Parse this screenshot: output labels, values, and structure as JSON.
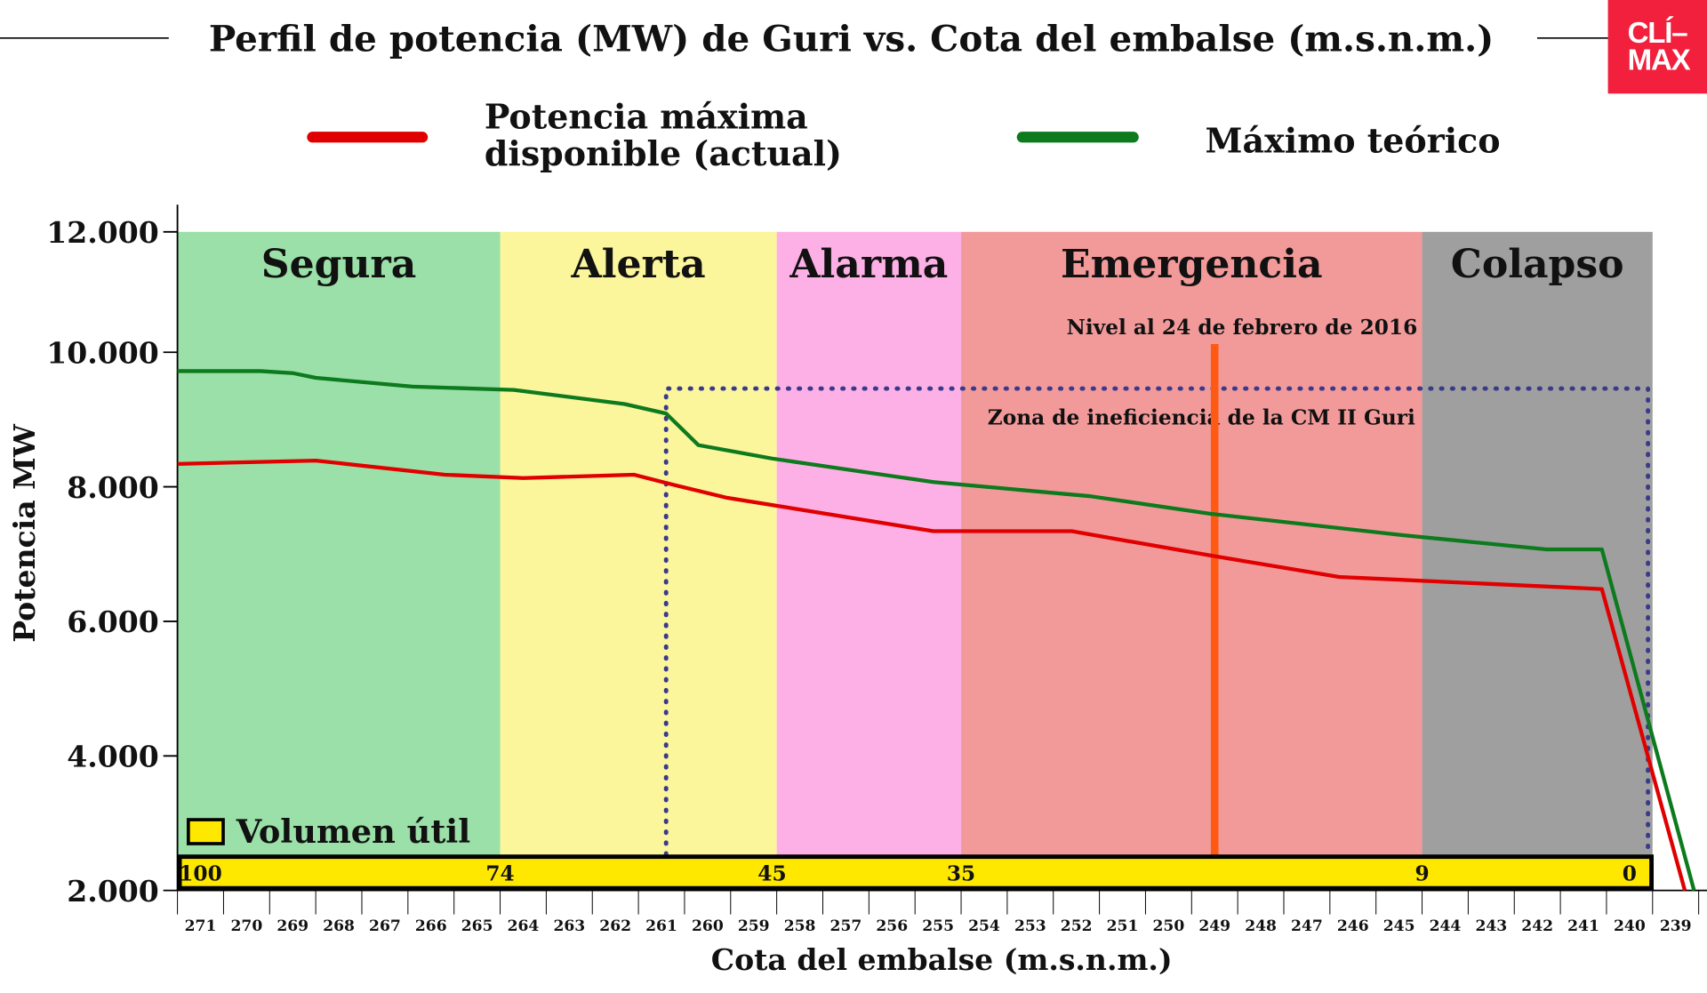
{
  "logo": {
    "line1": "CLÍ–",
    "line2": "MAX"
  },
  "chart_data": {
    "type": "line",
    "title": "Perfil de potencia (MW) de Guri vs. Cota del embalse (m.s.n.m.)",
    "xlabel": "Cota del embalse (m.s.n.m.)",
    "ylabel": "Potencia MW",
    "x_ticks": [
      "271",
      "270",
      "269",
      "268",
      "267",
      "266",
      "265",
      "264",
      "263",
      "262",
      "261",
      "260",
      "259",
      "258",
      "257",
      "256",
      "255",
      "254",
      "253",
      "252",
      "251",
      "250",
      "249",
      "248",
      "247",
      "246",
      "245",
      "244",
      "243",
      "242",
      "241",
      "240",
      "239"
    ],
    "y_ticks": [
      {
        "value": 2000,
        "label": "2.000"
      },
      {
        "value": 4000,
        "label": "4.000"
      },
      {
        "value": 6000,
        "label": "6.000"
      },
      {
        "value": 8000,
        "label": "8.000"
      },
      {
        "value": 10000,
        "label": "10.000"
      },
      {
        "value": 12000,
        "label": "12.000"
      }
    ],
    "ylim": [
      2000,
      12000
    ],
    "legend_position": "top",
    "series": [
      {
        "name": "Potencia máxima disponible (actual)",
        "name_line1": "Potencia máxima",
        "name_line2": "disponible (actual)",
        "color": "#e00000",
        "x": [
          271.5,
          268.5,
          265.7,
          264.0,
          261.6,
          260.8,
          259.6,
          255.1,
          252.1,
          249.1,
          246.3,
          240.6,
          238.8
        ],
        "y": [
          8340,
          8390,
          8180,
          8130,
          8180,
          8040,
          7840,
          7340,
          7340,
          6980,
          6660,
          6480,
          2000
        ]
      },
      {
        "name": "Máximo teórico",
        "color": "#0d7a1e",
        "x": [
          271.5,
          269.7,
          269.0,
          268.5,
          266.4,
          264.2,
          261.8,
          260.9,
          260.2,
          258.6,
          255.1,
          251.7,
          249.1,
          244.9,
          241.8,
          240.6,
          238.6
        ],
        "y": [
          9720,
          9720,
          9690,
          9620,
          9490,
          9440,
          9230,
          9090,
          8620,
          8420,
          8070,
          7860,
          7600,
          7280,
          7070,
          7070,
          2000
        ]
      }
    ],
    "zones": [
      {
        "label": "Segura",
        "from": 271.5,
        "to": 264.5,
        "color": "#9ae0a8"
      },
      {
        "label": "Alerta",
        "from": 264.5,
        "to": 258.5,
        "color": "#fbf59c"
      },
      {
        "label": "Alarma",
        "from": 258.5,
        "to": 254.5,
        "color": "#fdb0e6"
      },
      {
        "label": "Emergencia",
        "from": 254.5,
        "to": 244.5,
        "color": "#f29a9a"
      },
      {
        "label": "Colapso",
        "from": 244.5,
        "to": 239.5,
        "color": "#9f9f9f"
      }
    ],
    "annotations": {
      "current_level": {
        "label": "Nivel al 24 de febrero de 2016",
        "cota": 249,
        "color": "#ff5a14"
      },
      "inefficiency_zone": {
        "label": "Zona de ineficiencia de la CM II Guri",
        "from": 260.9,
        "to": 239.6,
        "top": 9460,
        "color": "#3a3a8c"
      }
    },
    "volume": {
      "legend": "Volumen útil",
      "color": "#ffe800",
      "marks": [
        {
          "cota": 271.0,
          "value": "100"
        },
        {
          "cota": 264.5,
          "value": "74"
        },
        {
          "cota": 258.6,
          "value": "45"
        },
        {
          "cota": 254.5,
          "value": "35"
        },
        {
          "cota": 244.5,
          "value": "9"
        },
        {
          "cota": 240.0,
          "value": "0"
        }
      ]
    }
  }
}
